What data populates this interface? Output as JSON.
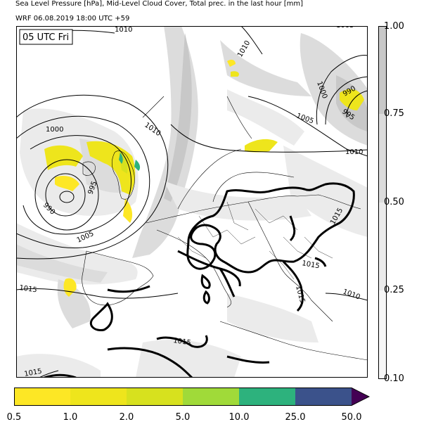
{
  "title_line1": "Sea Level Pressure [hPa], Mid-Level Cloud Cover, Total prec. in the last hour [mm]",
  "title_line2": "WRF 06.08.2019 18:00 UTC +59",
  "time_box": "05 UTC Fri",
  "isobar_labels": [
    "1010",
    "1005",
    "1010",
    "1000",
    "1010",
    "1000",
    "990",
    "995",
    "1005",
    "995",
    "990",
    "1005",
    "1010",
    "1015",
    "1015",
    "1015",
    "1010",
    "1015",
    "1015",
    "1015"
  ],
  "cloud_colorbar": {
    "ticks": [
      "1.00",
      "0.75",
      "0.50",
      "0.25",
      "0.10"
    ],
    "colors": [
      "#c8c8c8",
      "#dcdcdc",
      "#ebebeb",
      "#f7f7f7"
    ]
  },
  "precip_colorbar": {
    "ticks": [
      "0.5",
      "1.0",
      "2.0",
      "5.0",
      "10.0",
      "25.0",
      "50.0"
    ],
    "colors": [
      "#fde725",
      "#eee51c",
      "#d7e11e",
      "#a0da39",
      "#2db27d",
      "#3b528b",
      "#440154"
    ]
  },
  "colors": {
    "land_line": "#000000",
    "isobar": "#000000",
    "map_bg": "#ffffff"
  }
}
